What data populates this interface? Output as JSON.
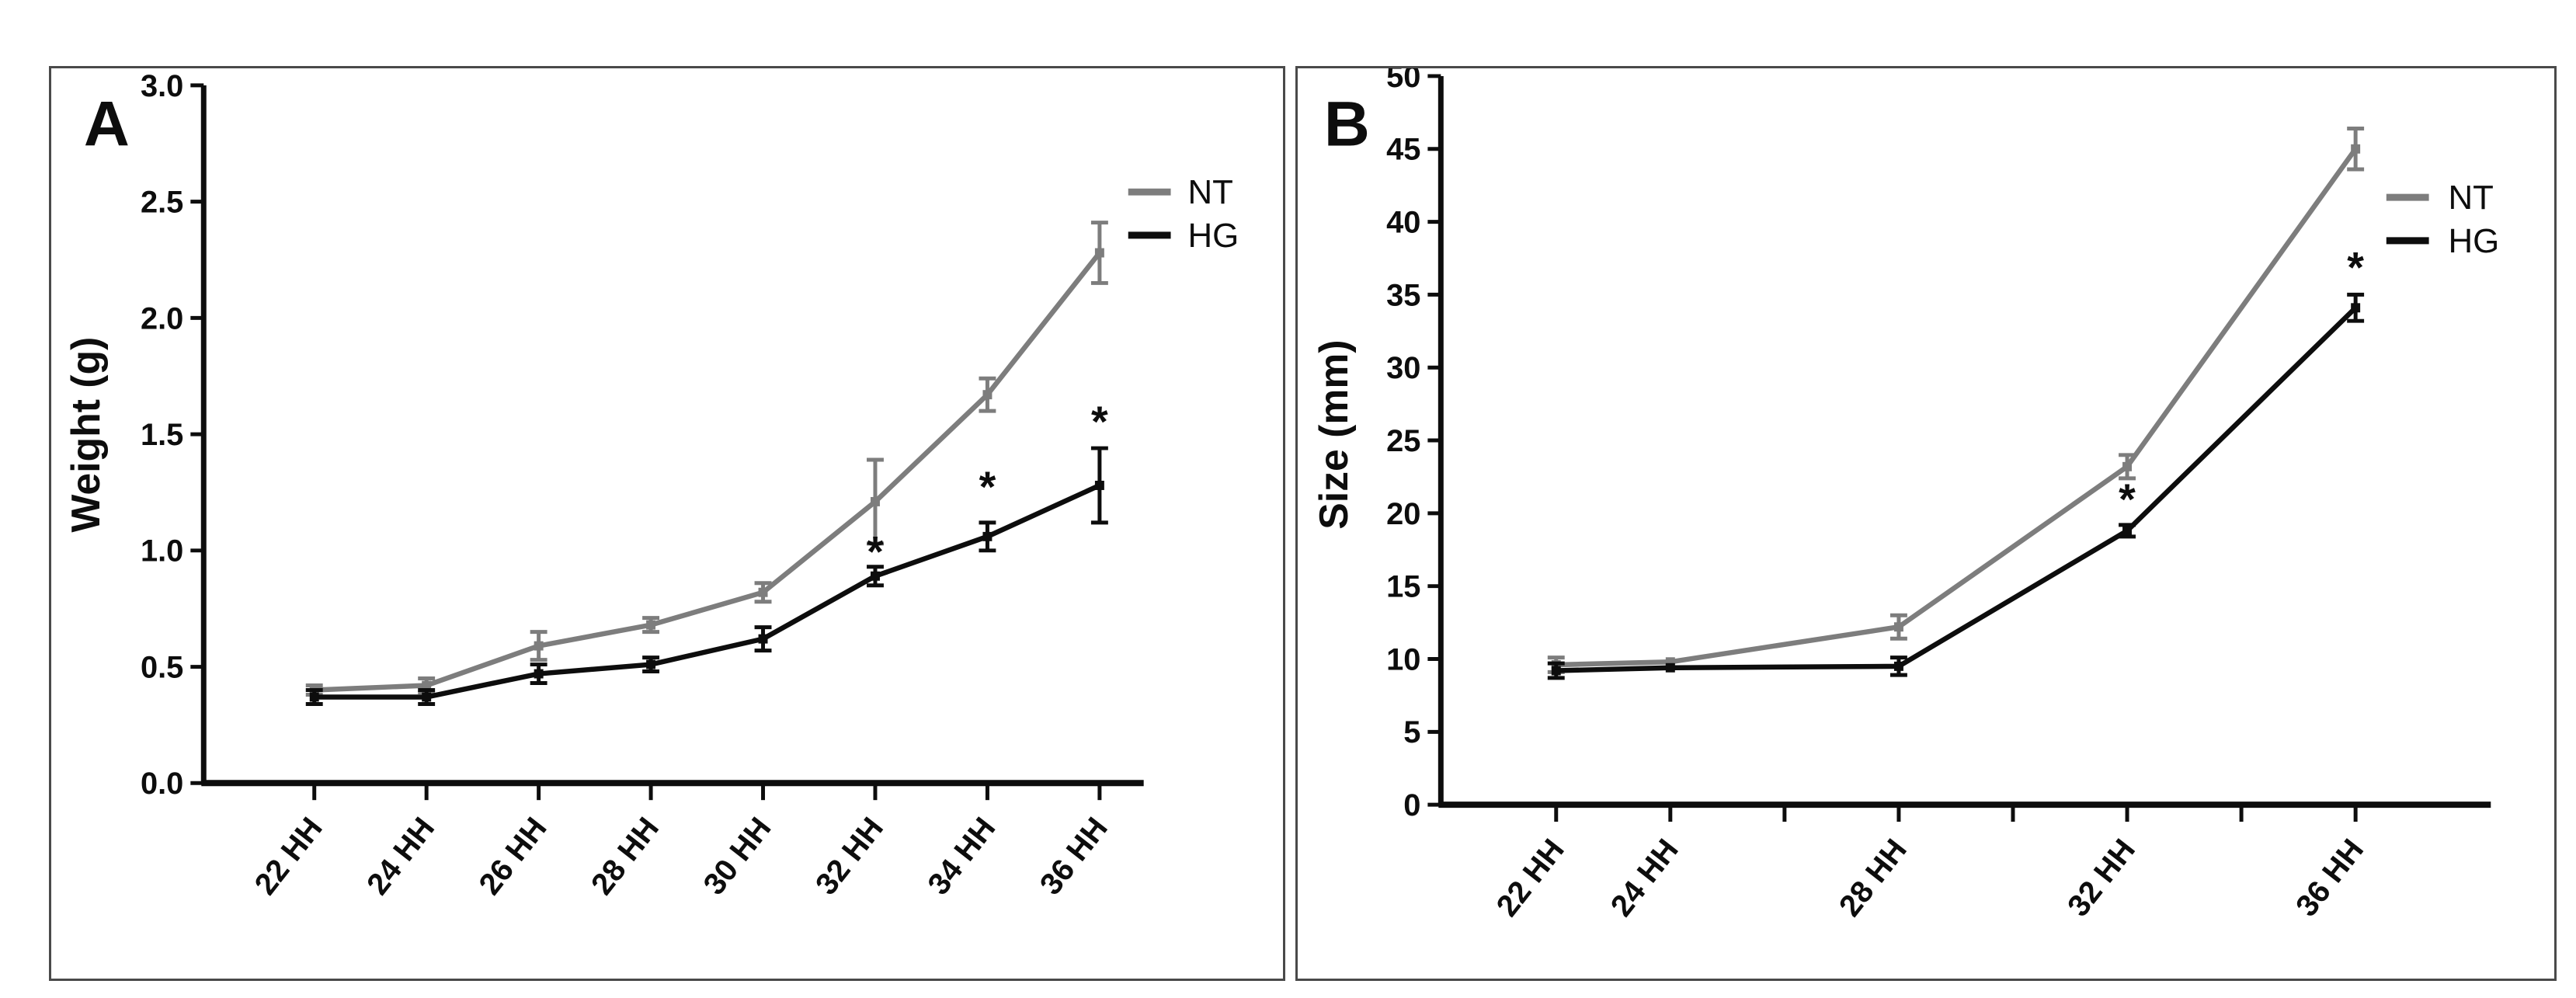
{
  "figure": {
    "background": "#ffffff",
    "panel_border_color": "#4a4a4a",
    "axis_color": "#0d0d0d",
    "text_color": "#0d0d0d"
  },
  "colors": {
    "nt": "#7d7d7d",
    "hg": "#0d0d0d"
  },
  "legend": {
    "nt_label": "NT",
    "hg_label": "HG"
  },
  "chart_data": [
    {
      "id": "A",
      "type": "line",
      "panel_label": "A",
      "title": "",
      "xlabel": "",
      "ylabel": "Weight (g)",
      "ylim": [
        0,
        3.0
      ],
      "ytick_values": [
        0,
        0.5,
        1.0,
        1.5,
        2.0,
        2.5,
        3.0
      ],
      "ytick_labels": [
        "0.0",
        "0.5",
        "1.0",
        "1.5",
        "2.0",
        "2.5",
        "3.0"
      ],
      "categories": [
        "22 HH",
        "24 HH",
        "26 HH",
        "28 HH",
        "30 HH",
        "32 HH",
        "34 HH",
        "36 HH"
      ],
      "xtick_labels": [
        "22 HH",
        "24 HH",
        "26 HH",
        "28 HH",
        "30 HH",
        "32 HH",
        "34 HH",
        "36 HH"
      ],
      "grid": false,
      "legend_position": "upper-right",
      "legend_entries": [
        "NT",
        "HG"
      ],
      "series": [
        {
          "name": "NT",
          "color_key": "nt",
          "x": [
            0,
            1,
            2,
            3,
            4,
            5,
            6,
            7
          ],
          "values": [
            0.4,
            0.42,
            0.59,
            0.68,
            0.82,
            1.21,
            1.67,
            2.28
          ],
          "errors": [
            0.02,
            0.03,
            0.06,
            0.03,
            0.04,
            0.18,
            0.07,
            0.13
          ]
        },
        {
          "name": "HG",
          "color_key": "hg",
          "x": [
            0,
            1,
            2,
            3,
            4,
            5,
            6,
            7
          ],
          "values": [
            0.37,
            0.37,
            0.47,
            0.51,
            0.62,
            0.89,
            1.06,
            1.28
          ],
          "errors": [
            0.03,
            0.03,
            0.04,
            0.03,
            0.05,
            0.04,
            0.06,
            0.16
          ]
        }
      ],
      "annotations": [
        {
          "text": "*",
          "x": 5,
          "y": 0.99
        },
        {
          "text": "*",
          "x": 6,
          "y": 1.27
        },
        {
          "text": "*",
          "x": 7,
          "y": 1.55
        }
      ]
    },
    {
      "id": "B",
      "type": "line",
      "panel_label": "B",
      "title": "",
      "xlabel": "",
      "ylabel": "Size (mm)",
      "ylim": [
        0,
        50
      ],
      "ytick_values": [
        0,
        5,
        10,
        15,
        20,
        25,
        30,
        35,
        40,
        45,
        50
      ],
      "ytick_labels": [
        "0",
        "5",
        "10",
        "15",
        "20",
        "25",
        "30",
        "35",
        "40",
        "45",
        "50"
      ],
      "categories": [
        "22 HH",
        "24 HH",
        "26 HH",
        "28 HH",
        "30 HH",
        "32 HH",
        "34 HH",
        "36 HH"
      ],
      "xtick_labels": [
        "22 HH",
        "24 HH",
        "",
        "28 HH",
        "",
        "32 HH",
        "",
        "36 HH"
      ],
      "grid": false,
      "legend_position": "upper-right",
      "legend_entries": [
        "NT",
        "HG"
      ],
      "series": [
        {
          "name": "NT",
          "color_key": "nt",
          "x": [
            0,
            1,
            3,
            5,
            7
          ],
          "values": [
            9.6,
            9.8,
            12.2,
            23.2,
            45.0
          ],
          "errors": [
            0.5,
            0.0,
            0.8,
            0.8,
            1.4
          ]
        },
        {
          "name": "HG",
          "color_key": "hg",
          "x": [
            0,
            1,
            3,
            5,
            7
          ],
          "values": [
            9.2,
            9.4,
            9.5,
            18.8,
            34.1
          ],
          "errors": [
            0.5,
            0.0,
            0.6,
            0.4,
            0.9
          ]
        }
      ],
      "annotations": [
        {
          "text": "*",
          "x": 5,
          "y": 20.9
        },
        {
          "text": "*",
          "x": 7,
          "y": 36.8
        }
      ]
    }
  ]
}
